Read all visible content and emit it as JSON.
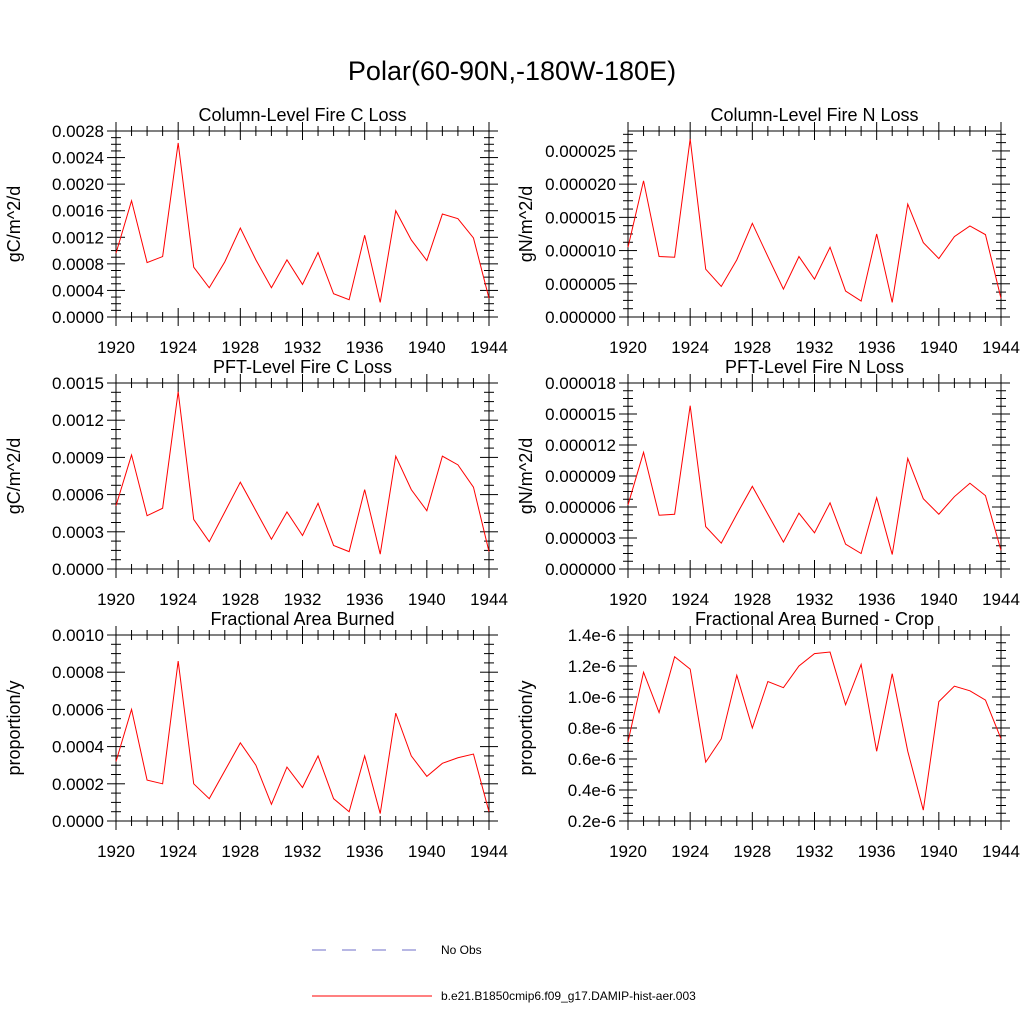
{
  "title": "Polar(60-90N,-180W-180E)",
  "colors": {
    "series": "#ff0000",
    "obs": "#6f6fc8",
    "axis": "#000000"
  },
  "legend": {
    "obs_label": "No Obs",
    "model_label": "b.e21.B1850cmip6.f09_g17.DAMIP-hist-aer.003"
  },
  "chart_data": [
    {
      "type": "line",
      "title": "Column-Level Fire C Loss",
      "ylabel": "gC/m^2/d",
      "xlim": [
        1920,
        1944
      ],
      "ylim": [
        0,
        0.0028
      ],
      "xticks": [
        "1920",
        "1924",
        "1928",
        "1932",
        "1936",
        "1940",
        "1944"
      ],
      "yticks": [
        "0.0000",
        "0.0004",
        "0.0008",
        "0.0012",
        "0.0016",
        "0.0020",
        "0.0024",
        "0.0028"
      ],
      "x": [
        1920,
        1921,
        1922,
        1923,
        1924,
        1925,
        1926,
        1927,
        1928,
        1929,
        1930,
        1931,
        1932,
        1933,
        1934,
        1935,
        1936,
        1937,
        1938,
        1939,
        1940,
        1941,
        1942,
        1943,
        1944
      ],
      "series": [
        {
          "values": [
            0.00096,
            0.00175,
            0.00082,
            0.00091,
            0.00262,
            0.00075,
            0.00044,
            0.00083,
            0.00134,
            0.00086,
            0.00044,
            0.00086,
            0.00049,
            0.00097,
            0.00035,
            0.00026,
            0.00123,
            0.00022,
            0.0016,
            0.00116,
            0.00085,
            0.00155,
            0.00148,
            0.00119,
            0.00028
          ]
        }
      ]
    },
    {
      "type": "line",
      "title": "Column-Level Fire N Loss",
      "ylabel": "gN/m^2/d",
      "xlim": [
        1920,
        1944
      ],
      "ylim": [
        0,
        2.8e-05
      ],
      "xticks": [
        "1920",
        "1924",
        "1928",
        "1932",
        "1936",
        "1940",
        "1944"
      ],
      "yticks": [
        "0.000000",
        "0.000005",
        "0.000010",
        "0.000015",
        "0.000020",
        "0.000025"
      ],
      "ytick_values": [
        0,
        5e-06,
        1e-05,
        1.5e-05,
        2e-05,
        2.5e-05
      ],
      "x": [
        1920,
        1921,
        1922,
        1923,
        1924,
        1925,
        1926,
        1927,
        1928,
        1929,
        1930,
        1931,
        1932,
        1933,
        1934,
        1935,
        1936,
        1937,
        1938,
        1939,
        1940,
        1941,
        1942,
        1943,
        1944
      ],
      "series": [
        {
          "values": [
            1.05e-05,
            2.05e-05,
            9.1e-06,
            9e-06,
            2.68e-05,
            7.2e-06,
            4.6e-06,
            8.6e-06,
            1.41e-05,
            9.1e-06,
            4.2e-06,
            9.1e-06,
            5.7e-06,
            1.05e-05,
            3.9e-06,
            2.4e-06,
            1.25e-05,
            2.2e-06,
            1.7e-05,
            1.12e-05,
            8.8e-06,
            1.21e-05,
            1.37e-05,
            1.24e-05,
            2.8e-06
          ]
        }
      ]
    },
    {
      "type": "line",
      "title": "PFT-Level Fire C Loss",
      "ylabel": "gC/m^2/d",
      "xlim": [
        1920,
        1944
      ],
      "ylim": [
        0,
        0.0015
      ],
      "xticks": [
        "1920",
        "1924",
        "1928",
        "1932",
        "1936",
        "1940",
        "1944"
      ],
      "yticks": [
        "0.0000",
        "0.0003",
        "0.0006",
        "0.0009",
        "0.0012",
        "0.0015"
      ],
      "x": [
        1920,
        1921,
        1922,
        1923,
        1924,
        1925,
        1926,
        1927,
        1928,
        1929,
        1930,
        1931,
        1932,
        1933,
        1934,
        1935,
        1936,
        1937,
        1938,
        1939,
        1940,
        1941,
        1942,
        1943,
        1944
      ],
      "series": [
        {
          "values": [
            0.00051,
            0.00092,
            0.00043,
            0.00049,
            0.00143,
            0.0004,
            0.00022,
            0.00046,
            0.0007,
            0.00047,
            0.00024,
            0.00046,
            0.00027,
            0.00053,
            0.00019,
            0.00014,
            0.00064,
            0.00012,
            0.00091,
            0.00064,
            0.00047,
            0.00091,
            0.00084,
            0.00066,
            0.00014
          ]
        }
      ]
    },
    {
      "type": "line",
      "title": "PFT-Level Fire N Loss",
      "ylabel": "gN/m^2/d",
      "xlim": [
        1920,
        1944
      ],
      "ylim": [
        0,
        1.8e-05
      ],
      "xticks": [
        "1920",
        "1924",
        "1928",
        "1932",
        "1936",
        "1940",
        "1944"
      ],
      "yticks": [
        "0.000000",
        "0.000003",
        "0.000006",
        "0.000009",
        "0.000012",
        "0.000015",
        "0.000018"
      ],
      "x": [
        1920,
        1921,
        1922,
        1923,
        1924,
        1925,
        1926,
        1927,
        1928,
        1929,
        1930,
        1931,
        1932,
        1933,
        1934,
        1935,
        1936,
        1937,
        1938,
        1939,
        1940,
        1941,
        1942,
        1943,
        1944
      ],
      "series": [
        {
          "values": [
            6.2e-06,
            1.13e-05,
            5.2e-06,
            5.3e-06,
            1.58e-05,
            4.1e-06,
            2.5e-06,
            5.3e-06,
            8e-06,
            5.3e-06,
            2.6e-06,
            5.4e-06,
            3.5e-06,
            6.4e-06,
            2.4e-06,
            1.5e-06,
            6.9e-06,
            1.4e-06,
            1.07e-05,
            6.8e-06,
            5.3e-06,
            7e-06,
            8.3e-06,
            7.1e-06,
            1.8e-06
          ]
        }
      ]
    },
    {
      "type": "line",
      "title": "Fractional Area Burned",
      "ylabel": "proportion/y",
      "xlim": [
        1920,
        1944
      ],
      "ylim": [
        0,
        0.001
      ],
      "xticks": [
        "1920",
        "1924",
        "1928",
        "1932",
        "1936",
        "1940",
        "1944"
      ],
      "yticks": [
        "0.0000",
        "0.0002",
        "0.0004",
        "0.0006",
        "0.0008",
        "0.0010"
      ],
      "x": [
        1920,
        1921,
        1922,
        1923,
        1924,
        1925,
        1926,
        1927,
        1928,
        1929,
        1930,
        1931,
        1932,
        1933,
        1934,
        1935,
        1936,
        1937,
        1938,
        1939,
        1940,
        1941,
        1942,
        1943,
        1944
      ],
      "series": [
        {
          "values": [
            0.00032,
            0.0006,
            0.00022,
            0.0002,
            0.00086,
            0.0002,
            0.00012,
            0.00027,
            0.00042,
            0.0003,
            9e-05,
            0.00029,
            0.00018,
            0.00035,
            0.00012,
            5e-05,
            0.00035,
            4e-05,
            0.00058,
            0.00035,
            0.00024,
            0.00031,
            0.00034,
            0.00036,
            5e-05
          ]
        }
      ]
    },
    {
      "type": "line",
      "title": "Fractional Area Burned - Crop",
      "ylabel": "proportion/y",
      "xlim": [
        1920,
        1944
      ],
      "ylim": [
        2e-07,
        1.4e-06
      ],
      "xticks": [
        "1920",
        "1924",
        "1928",
        "1932",
        "1936",
        "1940",
        "1944"
      ],
      "yticks": [
        "0.2e-6",
        "0.4e-6",
        "0.6e-6",
        "0.8e-6",
        "1.0e-6",
        "1.2e-6",
        "1.4e-6"
      ],
      "x": [
        1920,
        1921,
        1922,
        1923,
        1924,
        1925,
        1926,
        1927,
        1928,
        1929,
        1930,
        1931,
        1932,
        1933,
        1934,
        1935,
        1936,
        1937,
        1938,
        1939,
        1940,
        1941,
        1942,
        1943,
        1944
      ],
      "series": [
        {
          "values": [
            7.1e-07,
            1.16e-06,
            9e-07,
            1.26e-06,
            1.18e-06,
            5.8e-07,
            7.3e-07,
            1.14e-06,
            8e-07,
            1.1e-06,
            1.06e-06,
            1.2e-06,
            1.28e-06,
            1.29e-06,
            9.5e-07,
            1.21e-06,
            6.5e-07,
            1.15e-06,
            6.5e-07,
            2.7e-07,
            9.7e-07,
            1.07e-06,
            1.04e-06,
            9.8e-07,
            7.3e-07
          ]
        }
      ]
    }
  ]
}
